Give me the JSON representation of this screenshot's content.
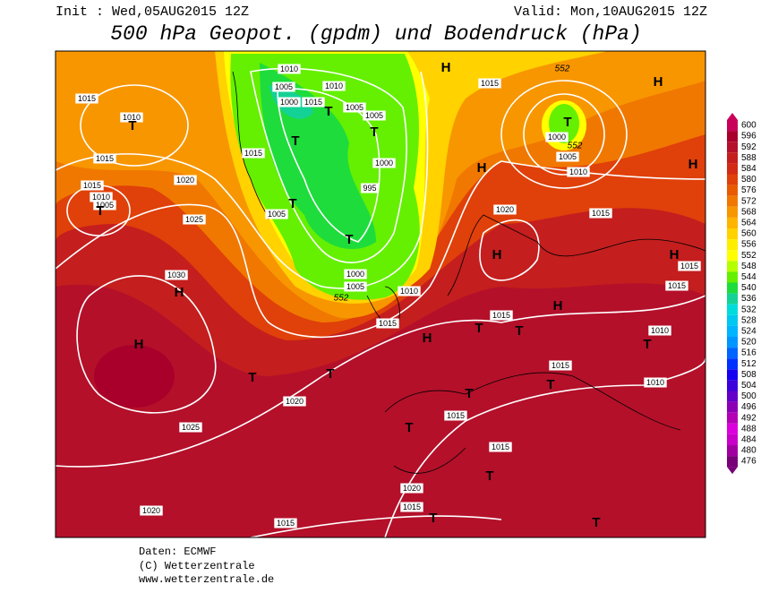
{
  "header": {
    "init": "Init : Wed,05AUG2015 12Z",
    "valid": "Valid: Mon,10AUG2015 12Z",
    "title": "500 hPa Geopot. (gpdm) und Bodendruck (hPa)"
  },
  "map": {
    "isobar_labels": [
      "1010",
      "1005",
      "1010",
      "1000",
      "1015",
      "1005",
      "1005",
      "1015",
      "1010",
      "1015",
      "1000",
      "1015",
      "995",
      "1020",
      "1015",
      "1010",
      "1005",
      "1005",
      "1025",
      "1020",
      "1015",
      "1000",
      "1005",
      "1010",
      "1015",
      "1030",
      "1000",
      "1005",
      "1010",
      "1015",
      "1015",
      "1015",
      "1015",
      "1010",
      "1015",
      "1010",
      "1020",
      "1015",
      "1025",
      "1015",
      "1020",
      "1015",
      "1020",
      "1015"
    ],
    "contour_labels": [
      "552",
      "552",
      "552"
    ],
    "markers": [
      "H",
      "H",
      "T",
      "H",
      "H",
      "T",
      "T",
      "T",
      "T",
      "T",
      "T",
      "T",
      "H",
      "H",
      "H",
      "H",
      "H",
      "T",
      "T",
      "H",
      "T",
      "T",
      "T",
      "T",
      "T",
      "T",
      "T",
      "T",
      "T"
    ]
  },
  "colorbar": {
    "labels": [
      "600",
      "596",
      "592",
      "588",
      "584",
      "580",
      "576",
      "572",
      "568",
      "564",
      "560",
      "556",
      "552",
      "548",
      "544",
      "540",
      "536",
      "532",
      "528",
      "524",
      "520",
      "516",
      "512",
      "508",
      "504",
      "500",
      "496",
      "492",
      "488",
      "484",
      "480",
      "476"
    ],
    "colors": [
      "#c8005a",
      "#a8002a",
      "#b4102a",
      "#c41e1e",
      "#d22a14",
      "#e0400a",
      "#e85a00",
      "#f07800",
      "#f89600",
      "#ffb400",
      "#ffd200",
      "#ffee00",
      "#ffff00",
      "#b4ff00",
      "#64f000",
      "#1edc3c",
      "#14d296",
      "#00dcdc",
      "#00c8f0",
      "#00b4ff",
      "#0096ff",
      "#0064ff",
      "#0032ff",
      "#1400f0",
      "#3c00dc",
      "#6400c8",
      "#8c00b4",
      "#b400b4",
      "#dc00dc",
      "#c800c8",
      "#a000a0",
      "#780078"
    ]
  },
  "footer": {
    "source": "Daten: ECMWF",
    "copyright": "(C) Wetterzentrale",
    "url": "www.wetterzentrale.de"
  }
}
